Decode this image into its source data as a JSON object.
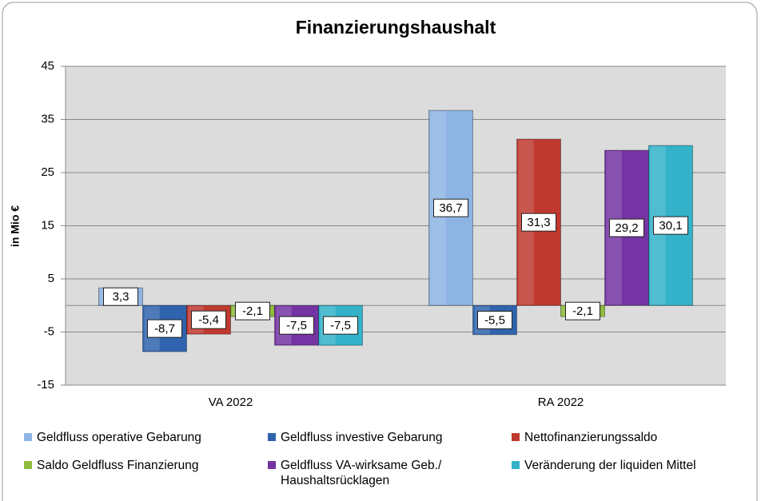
{
  "chart_data": {
    "type": "bar",
    "title": "Finanzierungshaushalt",
    "y_label": "in Mio €",
    "categories": [
      "VA 2022",
      "RA 2022"
    ],
    "series": [
      {
        "name": "Geldfluss operative Gebarung",
        "color": "#8eb4e3",
        "values": [
          3.3,
          36.7
        ],
        "value_labels": [
          "3,3",
          "36,7"
        ]
      },
      {
        "name": "Geldfluss investive Gebarung",
        "color": "#2f63ad",
        "values": [
          -8.7,
          -5.5
        ],
        "value_labels": [
          "-8,7",
          "-5,5"
        ]
      },
      {
        "name": "Nettofinanzierungssaldo",
        "color": "#c0392f",
        "values": [
          -5.4,
          31.3
        ],
        "value_labels": [
          "-5,4",
          "31,3"
        ]
      },
      {
        "name": "Saldo Geldfluss Finanzierung",
        "color": "#8fbc3e",
        "values": [
          -2.1,
          -2.1
        ],
        "value_labels": [
          "-2,1",
          "-2,1"
        ]
      },
      {
        "name": "Geldfluss VA-wirksame Geb./\nHaushaltsrücklagen",
        "color": "#7434a3",
        "values": [
          -7.5,
          29.2
        ],
        "value_labels": [
          "-7,5",
          "29,2"
        ]
      },
      {
        "name": "Veränderung der liquiden Mittel",
        "color": "#33b2c9",
        "values": [
          -7.5,
          30.1
        ],
        "value_labels": [
          "-7,5",
          "30,1"
        ]
      }
    ],
    "ylim": [
      -15,
      45
    ],
    "yticks": [
      -15,
      -5,
      5,
      15,
      25,
      35,
      45
    ],
    "grid": true
  }
}
